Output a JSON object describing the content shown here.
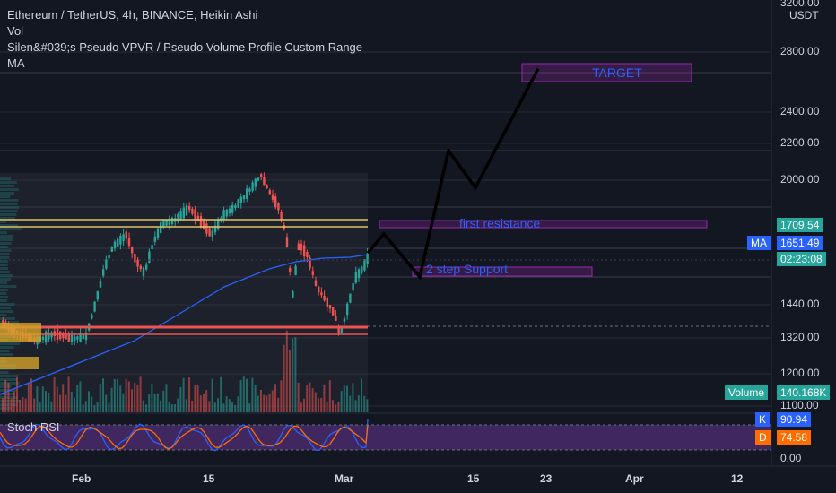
{
  "legend": {
    "title": "Ethereum / TetherUS, 4h, BINANCE, Heikin Ashi",
    "vol": "Vol",
    "vpvr": "Silen&#039;s Pseudo VPVR / Pseudo Volume Profile Custom Range",
    "ma": "MA"
  },
  "price_axis": {
    "currency": "USDT",
    "ticks": [
      "3200.00",
      "2800.00",
      "2400.00",
      "2200.00",
      "2000.00",
      "1440.00",
      "1320.00",
      "1200.00",
      "1100.00"
    ],
    "badges": {
      "resistance": "1709.54",
      "ma_label": "MA",
      "ma_value": "1651.49",
      "countdown": "02:23:08",
      "volume_label": "Volume",
      "volume_value": "140.168K"
    }
  },
  "rsi": {
    "title": "Stoch RSI",
    "k_label": "K",
    "k_value": "90.94",
    "d_label": "D",
    "d_value": "74.58",
    "zero_tick": "0.00"
  },
  "time_axis": [
    "Feb",
    "15",
    "Mar",
    "15",
    "23",
    "Apr",
    "12"
  ],
  "annotations": {
    "target": "TARGET",
    "resistance": "first resistance",
    "support": "2 step Support"
  },
  "colors": {
    "background": "#131722",
    "up": "#26a69a",
    "down": "#ef5350",
    "ma_line": "#2962ff",
    "annotation_box": "#9c27b0",
    "annotation_text": "#2962ff",
    "rsi_band": "#4a2a6b",
    "k_line": "#2962ff",
    "d_line": "#ff6d00"
  },
  "chart_data": {
    "type": "candlestick",
    "y_scale": "log",
    "ylim": [
      1100,
      3200
    ],
    "levels": {
      "resistance": 1709.54,
      "ma": 1651.49,
      "support": 1540,
      "red_line": 1350,
      "target": 2700
    },
    "projection": [
      {
        "date": "Mar 2",
        "price": 1650
      },
      {
        "date": "Mar 4",
        "price": 1735
      },
      {
        "date": "Mar 10",
        "price": 1550
      },
      {
        "date": "Mar 14",
        "price": 2160
      },
      {
        "date": "Mar 17",
        "price": 1960
      },
      {
        "date": "Mar 23",
        "price": 2680
      }
    ]
  }
}
